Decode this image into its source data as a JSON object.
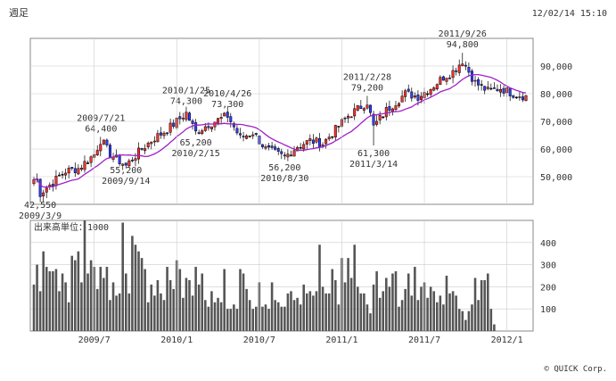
{
  "header": {
    "period": "週足",
    "datetime": "12/02/14 15:10"
  },
  "credit": "© QUICK Corp.",
  "colors": {
    "up": "#ff3030",
    "down": "#3040ff",
    "doji": "#000000",
    "ma": "#a020c8",
    "volume": "#555555",
    "grid": "#cccccc",
    "frame": "#888888"
  },
  "chart_data": [
    {
      "type": "candlestick",
      "ylim": [
        40000,
        100000
      ],
      "yticks": [
        50000,
        60000,
        70000,
        80000,
        90000
      ],
      "ytick_labels": [
        "50,000",
        "60,000",
        "70,000",
        "80,000",
        "90,000"
      ],
      "x_weeks": [
        [
          2009,
          2,
          23
        ],
        [
          2012,
          2,
          13
        ]
      ],
      "moving_average": {
        "label": "",
        "color": "#a020c8"
      },
      "anchors": [
        [
          2009,
          3,
          2,
          49000
        ],
        [
          2009,
          3,
          9,
          44000
        ],
        [
          2009,
          4,
          6,
          48000
        ],
        [
          2009,
          5,
          4,
          52000
        ],
        [
          2009,
          6,
          1,
          53000
        ],
        [
          2009,
          7,
          6,
          58000
        ],
        [
          2009,
          7,
          21,
          63500
        ],
        [
          2009,
          8,
          10,
          58000
        ],
        [
          2009,
          9,
          14,
          54000
        ],
        [
          2009,
          10,
          19,
          60000
        ],
        [
          2009,
          11,
          16,
          64000
        ],
        [
          2009,
          12,
          14,
          67000
        ],
        [
          2010,
          1,
          4,
          70000
        ],
        [
          2010,
          1,
          25,
          73000
        ],
        [
          2010,
          2,
          15,
          66000
        ],
        [
          2010,
          3,
          15,
          69000
        ],
        [
          2010,
          4,
          26,
          72000
        ],
        [
          2010,
          5,
          24,
          64000
        ],
        [
          2010,
          6,
          21,
          66000
        ],
        [
          2010,
          7,
          19,
          60000
        ],
        [
          2010,
          8,
          30,
          57000
        ],
        [
          2010,
          9,
          27,
          61000
        ],
        [
          2010,
          10,
          25,
          63000
        ],
        [
          2010,
          11,
          22,
          62000
        ],
        [
          2010,
          12,
          20,
          67000
        ],
        [
          2011,
          1,
          17,
          72000
        ],
        [
          2011,
          2,
          28,
          77000
        ],
        [
          2011,
          3,
          14,
          68000
        ],
        [
          2011,
          4,
          11,
          74000
        ],
        [
          2011,
          5,
          23,
          80000
        ],
        [
          2011,
          6,
          20,
          79000
        ],
        [
          2011,
          7,
          18,
          82000
        ],
        [
          2011,
          8,
          15,
          86000
        ],
        [
          2011,
          9,
          5,
          88000
        ],
        [
          2011,
          9,
          26,
          92000
        ],
        [
          2011,
          10,
          24,
          84000
        ],
        [
          2011,
          11,
          21,
          81000
        ],
        [
          2011,
          12,
          19,
          82000
        ],
        [
          2012,
          1,
          16,
          80000
        ],
        [
          2012,
          2,
          13,
          79000
        ]
      ],
      "annotations": [
        {
          "date": [
            2009,
            3,
            9
          ],
          "lines": [
            "42,550",
            "2009/3/9"
          ],
          "value": 42550,
          "side": "below"
        },
        {
          "date": [
            2009,
            7,
            21
          ],
          "lines": [
            "2009/7/21",
            "64,400"
          ],
          "value": 64400,
          "side": "above"
        },
        {
          "date": [
            2009,
            9,
            14
          ],
          "lines": [
            "55,200",
            "2009/9/14"
          ],
          "value": 55200,
          "side": "below"
        },
        {
          "date": [
            2010,
            1,
            25
          ],
          "lines": [
            "2010/1/25",
            "74,300"
          ],
          "value": 74300,
          "side": "above"
        },
        {
          "date": [
            2010,
            2,
            15
          ],
          "lines": [
            "65,200",
            "2010/2/15"
          ],
          "value": 65200,
          "side": "below"
        },
        {
          "date": [
            2010,
            4,
            26
          ],
          "lines": [
            "2010/4/26",
            "73,300"
          ],
          "value": 73300,
          "side": "above"
        },
        {
          "date": [
            2010,
            8,
            30
          ],
          "lines": [
            "56,200",
            "2010/8/30"
          ],
          "value": 56200,
          "side": "below"
        },
        {
          "date": [
            2011,
            2,
            28
          ],
          "lines": [
            "2011/2/28",
            "79,200"
          ],
          "value": 79200,
          "side": "above"
        },
        {
          "date": [
            2011,
            3,
            14
          ],
          "lines": [
            "61,300",
            "2011/3/14"
          ],
          "value": 61300,
          "side": "below"
        },
        {
          "date": [
            2011,
            9,
            26
          ],
          "lines": [
            "2011/9/26",
            "94,800"
          ],
          "value": 94800,
          "side": "above"
        }
      ]
    },
    {
      "type": "bar",
      "title": "出来高単位：1000",
      "ylim": [
        0,
        500
      ],
      "yticks": [
        100,
        200,
        300,
        400
      ],
      "ytick_labels": [
        "100",
        "200",
        "300",
        "400"
      ],
      "values": [
        210,
        300,
        180,
        360,
        290,
        270,
        270,
        280,
        180,
        260,
        220,
        130,
        340,
        320,
        360,
        220,
        500,
        260,
        320,
        290,
        190,
        290,
        240,
        290,
        140,
        220,
        160,
        170,
        490,
        260,
        170,
        430,
        390,
        360,
        330,
        280,
        130,
        210,
        160,
        230,
        170,
        140,
        290,
        230,
        190,
        320,
        280,
        150,
        240,
        230,
        160,
        290,
        210,
        260,
        140,
        110,
        180,
        130,
        150,
        130,
        280,
        100,
        100,
        120,
        100,
        280,
        260,
        190,
        140,
        100,
        110,
        220,
        110,
        120,
        100,
        220,
        140,
        130,
        110,
        110,
        170,
        180,
        140,
        150,
        120,
        210,
        170,
        180,
        160,
        180,
        390,
        200,
        170,
        170,
        280,
        230,
        120,
        330,
        220,
        330,
        240,
        390,
        200,
        170,
        170,
        120,
        80,
        210,
        270,
        150,
        180,
        240,
        200,
        260,
        270,
        110,
        140,
        190,
        260,
        160,
        290,
        140,
        200,
        220,
        150,
        200,
        180,
        130,
        160,
        120,
        250,
        170,
        180,
        160,
        100,
        90,
        50,
        90,
        120,
        240,
        140,
        230,
        230,
        260,
        100,
        30
      ]
    }
  ],
  "x_axis": {
    "ticks": [
      {
        "date": [
          2009,
          7,
          6
        ],
        "label": "2009/7"
      },
      {
        "date": [
          2010,
          1,
          4
        ],
        "label": "2010/1"
      },
      {
        "date": [
          2010,
          7,
          5
        ],
        "label": "2010/7"
      },
      {
        "date": [
          2011,
          1,
          3
        ],
        "label": "2011/1"
      },
      {
        "date": [
          2011,
          7,
          4
        ],
        "label": "2011/7"
      },
      {
        "date": [
          2012,
          1,
          2
        ],
        "label": "2012/1"
      }
    ]
  }
}
